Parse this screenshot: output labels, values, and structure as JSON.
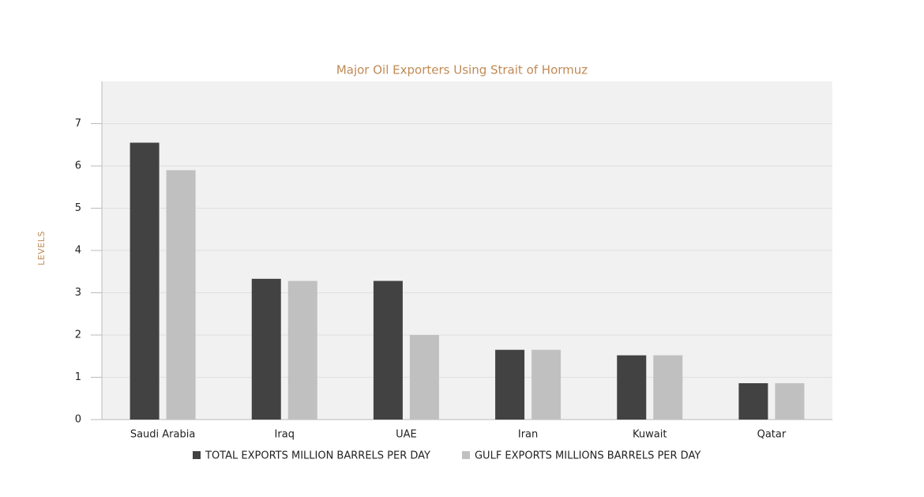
{
  "chart_data": {
    "type": "bar",
    "title": "Major Oil Exporters Using Strait of Hormuz",
    "y_label": "LEVELS",
    "categories": [
      "Saudi Arabia",
      "Iraq",
      "UAE",
      "Iran",
      "Kuwait",
      "Qatar"
    ],
    "series": [
      {
        "name": "TOTAL EXPORTS MILLION BARRELS PER DAY",
        "color": "#424242",
        "values": [
          6.55,
          3.33,
          3.28,
          1.65,
          1.52,
          0.86
        ]
      },
      {
        "name": "GULF EXPORTS MILLIONS BARRELS PER DAY",
        "color": "#c0c0c0",
        "values": [
          5.9,
          3.28,
          2.0,
          1.65,
          1.52,
          0.86
        ]
      }
    ],
    "ylim": [
      0,
      8
    ],
    "yticks": [
      0,
      1,
      2,
      3,
      4,
      5,
      6,
      7
    ],
    "grid": true
  }
}
